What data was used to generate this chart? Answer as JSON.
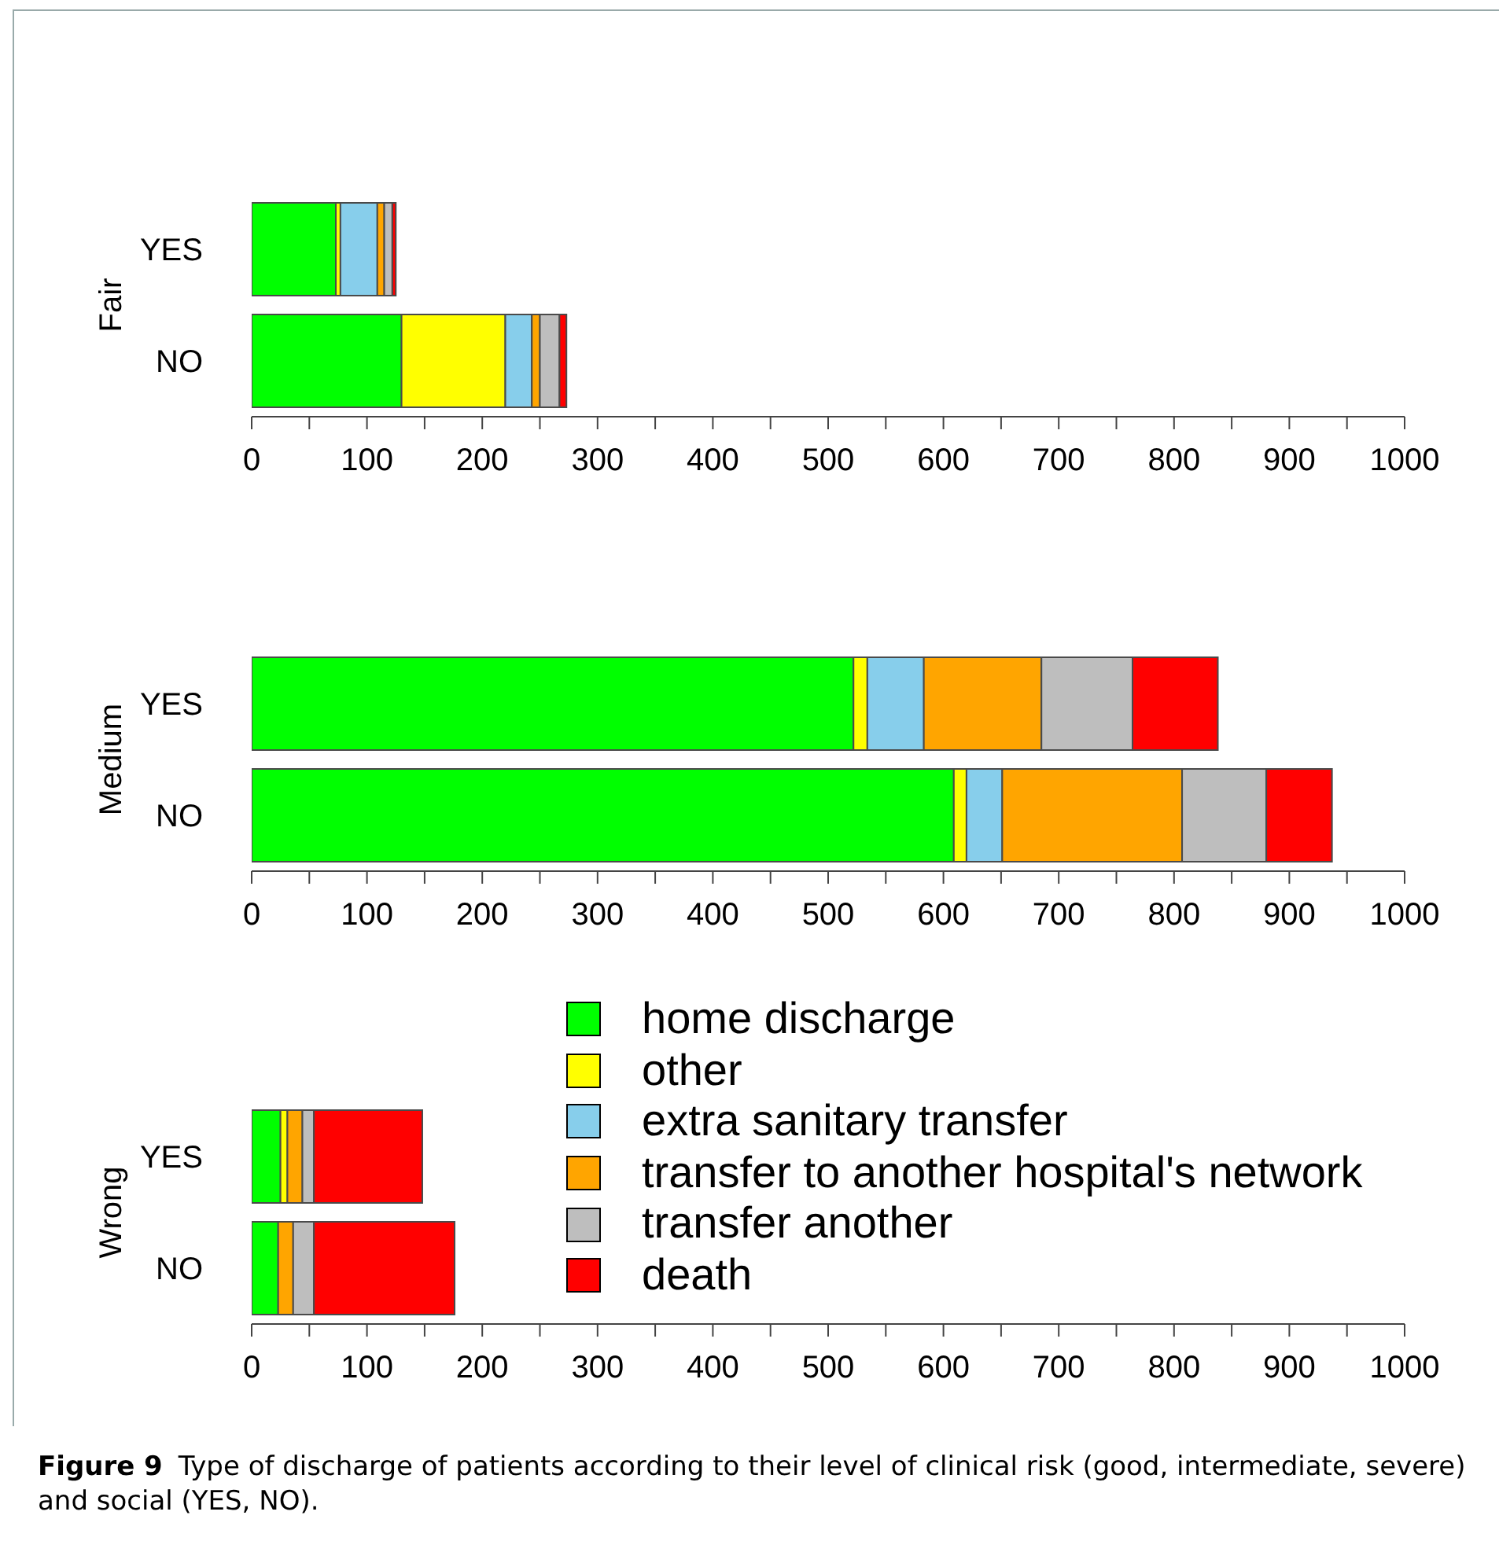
{
  "chart_data": [
    {
      "type": "bar",
      "orientation": "horizontal",
      "stacked": true,
      "ylabel": "Fair",
      "categories": [
        "YES",
        "NO"
      ],
      "xlim": [
        0,
        1000
      ],
      "xticks": [
        0,
        {
          "value": 50,
          "label": null
        },
        100,
        {
          "value": 150,
          "label": null
        },
        200,
        {
          "value": 250,
          "label": null
        },
        300,
        {
          "value": 350,
          "label": null
        },
        400,
        {
          "value": 450,
          "label": null
        },
        500,
        {
          "value": 550,
          "label": null
        },
        600,
        {
          "value": 650,
          "label": null
        },
        700,
        {
          "value": 750,
          "label": null
        },
        800,
        {
          "value": 850,
          "label": null
        },
        900,
        {
          "value": 950,
          "label": null
        },
        1000
      ],
      "grid": false,
      "legend": false,
      "series": [
        {
          "color": "#00ff00",
          "values": [
            73,
            130
          ]
        },
        {
          "color": "#ffff00",
          "values": [
            4,
            90
          ]
        },
        {
          "color": "#87ceeb",
          "values": [
            32,
            23
          ]
        },
        {
          "color": "#ffa500",
          "values": [
            6,
            7
          ]
        },
        {
          "color": "#bebebe",
          "values": [
            7,
            17
          ]
        },
        {
          "color": "#ff0000",
          "values": [
            3,
            6
          ]
        }
      ]
    },
    {
      "type": "bar",
      "orientation": "horizontal",
      "stacked": true,
      "ylabel": "Medium",
      "categories": [
        "YES",
        "NO"
      ],
      "xlim": [
        0,
        1000
      ],
      "xticks": [
        0,
        {
          "value": 50,
          "label": null
        },
        100,
        {
          "value": 150,
          "label": null
        },
        200,
        {
          "value": 250,
          "label": null
        },
        300,
        {
          "value": 350,
          "label": null
        },
        400,
        {
          "value": 450,
          "label": null
        },
        500,
        {
          "value": 550,
          "label": null
        },
        600,
        {
          "value": 650,
          "label": null
        },
        700,
        {
          "value": 750,
          "label": null
        },
        800,
        {
          "value": 850,
          "label": null
        },
        900,
        {
          "value": 950,
          "label": null
        },
        1000
      ],
      "grid": false,
      "legend": false,
      "series": [
        {
          "color": "#00ff00",
          "values": [
            522,
            609
          ]
        },
        {
          "color": "#ffff00",
          "values": [
            12,
            11
          ]
        },
        {
          "color": "#87ceeb",
          "values": [
            49,
            31
          ]
        },
        {
          "color": "#ffa500",
          "values": [
            102,
            156
          ]
        },
        {
          "color": "#bebebe",
          "values": [
            79,
            73
          ]
        },
        {
          "color": "#ff0000",
          "values": [
            74,
            57
          ]
        }
      ]
    },
    {
      "type": "bar",
      "orientation": "horizontal",
      "stacked": true,
      "ylabel": "Wrong",
      "categories": [
        "YES",
        "NO"
      ],
      "xlim": [
        0,
        1000
      ],
      "xticks": [
        0,
        {
          "value": 50,
          "label": null
        },
        100,
        {
          "value": 150,
          "label": null
        },
        200,
        {
          "value": 250,
          "label": null
        },
        300,
        {
          "value": 350,
          "label": null
        },
        400,
        {
          "value": 450,
          "label": null
        },
        500,
        {
          "value": 550,
          "label": null
        },
        600,
        {
          "value": 650,
          "label": null
        },
        700,
        {
          "value": 750,
          "label": null
        },
        800,
        {
          "value": 850,
          "label": null
        },
        900,
        {
          "value": 950,
          "label": null
        },
        1000
      ],
      "grid": false,
      "legend": "top right",
      "annotations": [
        "Figure 9",
        "Type of discharge of patients according to their level of clinical risk (good, intermediate, severe) and social (YES, NO)."
      ],
      "series": [
        {
          "name": "home discharge",
          "color": "#00ff00",
          "values": [
            25,
            23
          ]
        },
        {
          "name": "other",
          "color": "#ffff00",
          "values": [
            6,
            null
          ]
        },
        {
          "name": "extra sanitary transfer",
          "color": "#87ceeb",
          "values": [
            0,
            0
          ]
        },
        {
          "name": "transfer to another hospital's network",
          "color": "#ffa500",
          "values": [
            13,
            13
          ]
        },
        {
          "name": "transfer another",
          "color": "#bebebe",
          "values": [
            10,
            18
          ]
        },
        {
          "name": "death",
          "color": "#ff0000",
          "values": [
            94,
            122
          ]
        }
      ]
    }
  ]
}
